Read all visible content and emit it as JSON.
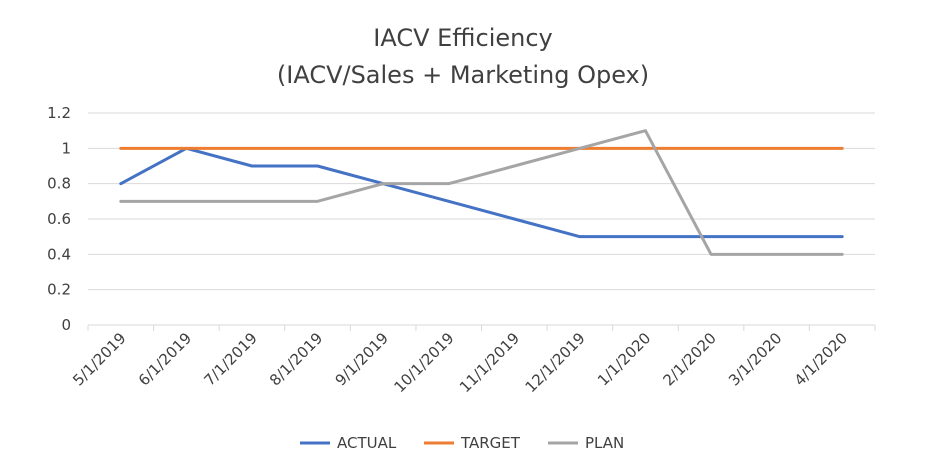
{
  "chart_data": {
    "type": "line",
    "title": "IACV Efficiency",
    "subtitle": "(IACV/Sales + Marketing Opex)",
    "xlabel": "",
    "ylabel": "",
    "categories": [
      "5/1/2019",
      "6/1/2019",
      "7/1/2019",
      "8/1/2019",
      "9/1/2019",
      "10/1/2019",
      "11/1/2019",
      "12/1/2019",
      "1/1/2020",
      "2/1/2020",
      "3/1/2020",
      "4/1/2020"
    ],
    "ylim": [
      0,
      1.2
    ],
    "yticks": [
      "0",
      "0.2",
      "0.4",
      "0.6",
      "0.8",
      "1",
      "1.2"
    ],
    "grid": true,
    "legend_position": "bottom",
    "series": [
      {
        "name": "ACTUAL",
        "color": "#4472C4",
        "values": [
          0.8,
          1.0,
          0.9,
          0.9,
          0.8,
          0.7,
          0.6,
          0.5,
          0.5,
          0.5,
          0.5,
          0.5
        ]
      },
      {
        "name": "TARGET",
        "color": "#ED7D31",
        "values": [
          1,
          1,
          1,
          1,
          1,
          1,
          1,
          1,
          1,
          1,
          1,
          1
        ]
      },
      {
        "name": "PLAN",
        "color": "#A5A5A5",
        "values": [
          0.7,
          0.7,
          0.7,
          0.7,
          0.8,
          0.8,
          0.9,
          1.0,
          1.1,
          0.4,
          0.4,
          0.4
        ]
      }
    ]
  }
}
